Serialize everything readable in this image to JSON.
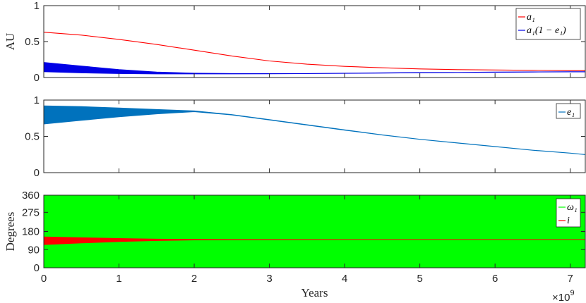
{
  "chart_data": [
    {
      "type": "line",
      "ylabel": "AU",
      "xlim": [
        0,
        7.2
      ],
      "ylim": [
        0,
        1
      ],
      "yticks": [
        0,
        0.5,
        1
      ],
      "ytick_labels": [
        "0",
        "0.5",
        "1"
      ],
      "grid": false,
      "legend_position": "top-right",
      "legend": [
        "a₁",
        "a₁(1 − e₁)"
      ],
      "series": [
        {
          "name": "a₁",
          "color": "#ff0000",
          "x": [
            0,
            0.5,
            1,
            1.5,
            2,
            2.5,
            3,
            3.5,
            4,
            4.5,
            5,
            5.5,
            6,
            6.5,
            7,
            7.2
          ],
          "y": [
            0.63,
            0.59,
            0.53,
            0.46,
            0.38,
            0.3,
            0.23,
            0.185,
            0.155,
            0.135,
            0.12,
            0.11,
            0.105,
            0.1,
            0.095,
            0.095
          ]
        },
        {
          "name": "a₁(1 − e₁)",
          "color": "#0000e6",
          "x": [
            0,
            0.5,
            1,
            1.5,
            2,
            2.5,
            3,
            3.5,
            4,
            4.5,
            5,
            5.5,
            6,
            6.5,
            7,
            7.2
          ],
          "y_upper": [
            0.21,
            0.16,
            0.11,
            0.075,
            0.06,
            0.055,
            0.055,
            0.055,
            0.06,
            0.065,
            0.07,
            0.072,
            0.075,
            0.078,
            0.08,
            0.08
          ],
          "y_lower": [
            0.08,
            0.065,
            0.055,
            0.05,
            0.05,
            0.05,
            0.052,
            0.054,
            0.058,
            0.062,
            0.066,
            0.07,
            0.073,
            0.076,
            0.078,
            0.078
          ]
        }
      ]
    },
    {
      "type": "line",
      "ylabel": "",
      "xlim": [
        0,
        7.2
      ],
      "ylim": [
        0,
        1
      ],
      "yticks": [
        0,
        0.5,
        1
      ],
      "ytick_labels": [
        "0",
        "0.5",
        "1"
      ],
      "grid": false,
      "legend_position": "top-right",
      "legend": [
        "e₁"
      ],
      "series": [
        {
          "name": "e₁",
          "color": "#0072bd",
          "x": [
            0,
            0.5,
            1,
            1.5,
            2,
            2.5,
            3,
            3.5,
            4,
            4.5,
            5,
            5.5,
            6,
            6.5,
            7,
            7.2
          ],
          "y_upper": [
            0.92,
            0.91,
            0.89,
            0.87,
            0.85,
            0.8,
            0.73,
            0.66,
            0.59,
            0.52,
            0.46,
            0.41,
            0.36,
            0.31,
            0.27,
            0.25
          ],
          "y_lower": [
            0.67,
            0.72,
            0.77,
            0.81,
            0.84,
            0.795,
            0.725,
            0.655,
            0.585,
            0.518,
            0.458,
            0.408,
            0.358,
            0.308,
            0.268,
            0.248
          ]
        }
      ]
    },
    {
      "type": "area",
      "ylabel": "Degrees",
      "xlabel": "Years",
      "x_exponent_label": "×10",
      "x_exponent": "9",
      "xlim": [
        0,
        7.2
      ],
      "xticks": [
        0,
        1,
        2,
        3,
        4,
        5,
        6,
        7
      ],
      "xtick_labels": [
        "0",
        "1",
        "2",
        "3",
        "4",
        "5",
        "6",
        "7"
      ],
      "ylim": [
        0,
        360
      ],
      "yticks": [
        0,
        90,
        180,
        275,
        360
      ],
      "ytick_labels": [
        "0",
        "90",
        "180",
        "275",
        "360"
      ],
      "grid": false,
      "legend_position": "top-right",
      "legend": [
        "ω₁",
        "i"
      ],
      "series": [
        {
          "name": "ω₁",
          "color": "#00ff00",
          "x": [
            0,
            7.2
          ],
          "y_upper": [
            360,
            360
          ],
          "y_lower": [
            0,
            0
          ]
        },
        {
          "name": "i",
          "color": "#ff0000",
          "x": [
            0,
            0.5,
            1,
            1.5,
            2,
            2.5,
            3,
            4,
            5,
            6,
            7,
            7.2
          ],
          "y_upper": [
            153,
            149,
            145,
            142,
            141,
            140,
            140,
            140,
            140,
            140,
            140,
            140
          ],
          "y_lower": [
            115,
            123,
            130,
            135,
            138,
            139,
            139.5,
            140,
            140,
            140,
            140,
            140
          ]
        }
      ]
    }
  ]
}
